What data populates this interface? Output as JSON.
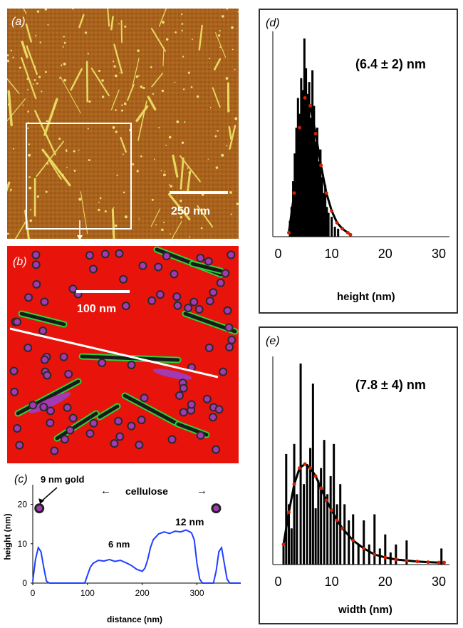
{
  "panels": {
    "a": {
      "letter_open": "(",
      "letter": "a",
      "letter_close": ")",
      "scale_bar_label": "250 nm",
      "colors": {
        "background": "#a8621c",
        "fibers": "#e8d860",
        "box": "#ffffff"
      }
    },
    "b": {
      "letter_open": "(",
      "letter": "b",
      "letter_close": ")",
      "scale_bar_label": "100 nm",
      "colors": {
        "background": "#e8140c",
        "particle": "#a23ab4",
        "fiber_edge": "#2ed23a",
        "line": "#ffffff"
      }
    },
    "c": {
      "letter_open": "(",
      "letter": "c",
      "letter_close": ")",
      "annotations": {
        "gold": "9 nm gold",
        "cellulose": "cellulose",
        "left_arrow": "←",
        "right_arrow": "→",
        "peak_12": "12 nm",
        "peak_6": "6 nm"
      },
      "chart_data": {
        "type": "line",
        "xlabel": "distance (nm)",
        "ylabel": "height (nm)",
        "xlim": [
          0,
          380
        ],
        "ylim": [
          0,
          25
        ],
        "x_ticks": [
          0,
          100,
          200,
          300
        ],
        "y_ticks": [
          0,
          10,
          20
        ],
        "x": [
          0,
          5,
          10,
          15,
          20,
          25,
          30,
          40,
          60,
          80,
          95,
          100,
          105,
          110,
          120,
          130,
          140,
          150,
          160,
          170,
          180,
          190,
          200,
          205,
          210,
          215,
          220,
          230,
          240,
          250,
          260,
          270,
          280,
          290,
          295,
          300,
          305,
          310,
          320,
          330,
          335,
          340,
          345,
          350,
          355,
          360,
          370,
          380
        ],
        "y": [
          0.5,
          6,
          9,
          8,
          4,
          0.5,
          0,
          0,
          0,
          0,
          0,
          2,
          4,
          5,
          5.8,
          5.6,
          6,
          5.5,
          5.8,
          5.2,
          4.5,
          3.5,
          3,
          3.8,
          6,
          9,
          11,
          12.5,
          13,
          12.6,
          13.2,
          13,
          13.5,
          12.8,
          11,
          5,
          1,
          0,
          0,
          0,
          3,
          8,
          9,
          5,
          1,
          0,
          0,
          0
        ],
        "series": [
          {
            "color": "#2040ff"
          }
        ]
      }
    },
    "d": {
      "letter_open": "(",
      "letter": "d",
      "letter_close": ")",
      "annotation": "(6.4 ± 2) nm",
      "chart_data": {
        "type": "bar",
        "xlabel": "height (nm)",
        "xlim": [
          -1,
          32
        ],
        "x_ticks": [
          0,
          10,
          20,
          30
        ],
        "bars": [
          {
            "x": 2.2,
            "h": 0.08
          },
          {
            "x": 2.5,
            "h": 0.15
          },
          {
            "x": 2.8,
            "h": 0.28
          },
          {
            "x": 3.1,
            "h": 0.42
          },
          {
            "x": 3.4,
            "h": 0.55
          },
          {
            "x": 3.7,
            "h": 0.7
          },
          {
            "x": 4.0,
            "h": 0.62
          },
          {
            "x": 4.3,
            "h": 0.8
          },
          {
            "x": 4.6,
            "h": 0.74
          },
          {
            "x": 4.9,
            "h": 1.0
          },
          {
            "x": 5.2,
            "h": 0.85
          },
          {
            "x": 5.5,
            "h": 0.72
          },
          {
            "x": 5.8,
            "h": 0.78
          },
          {
            "x": 6.1,
            "h": 0.6
          },
          {
            "x": 6.4,
            "h": 0.84
          },
          {
            "x": 6.7,
            "h": 0.66
          },
          {
            "x": 7.0,
            "h": 0.48
          },
          {
            "x": 7.3,
            "h": 0.55
          },
          {
            "x": 7.6,
            "h": 0.38
          },
          {
            "x": 7.9,
            "h": 0.44
          },
          {
            "x": 8.2,
            "h": 0.3
          },
          {
            "x": 8.5,
            "h": 0.22
          },
          {
            "x": 8.8,
            "h": 0.26
          },
          {
            "x": 9.1,
            "h": 0.15
          },
          {
            "x": 9.4,
            "h": 0.12
          },
          {
            "x": 10.0,
            "h": 0.1
          },
          {
            "x": 10.6,
            "h": 0.05
          },
          {
            "x": 11.2,
            "h": 0.04
          }
        ],
        "fit_x": [
          2,
          3,
          4,
          5,
          6,
          7,
          8,
          9,
          10,
          11,
          12,
          13,
          13.5
        ],
        "fit_y": [
          0.02,
          0.22,
          0.55,
          0.7,
          0.66,
          0.52,
          0.36,
          0.22,
          0.13,
          0.07,
          0.04,
          0.02,
          0.01
        ],
        "colors": {
          "bars": "#000000",
          "fit": "#cc2200"
        }
      }
    },
    "e": {
      "letter_open": "(",
      "letter": "e",
      "letter_close": ")",
      "annotation": "(7.8 ± 4) nm",
      "chart_data": {
        "type": "bar",
        "xlabel": "width (nm)",
        "xlim": [
          -1,
          32
        ],
        "x_ticks": [
          0,
          10,
          20,
          30
        ],
        "bars": [
          {
            "x": 1.0,
            "h": 0.1
          },
          {
            "x": 1.5,
            "h": 0.55
          },
          {
            "x": 2.0,
            "h": 0.3
          },
          {
            "x": 2.5,
            "h": 0.18
          },
          {
            "x": 3.0,
            "h": 0.6
          },
          {
            "x": 3.5,
            "h": 0.35
          },
          {
            "x": 4.2,
            "h": 1.0
          },
          {
            "x": 4.8,
            "h": 0.4
          },
          {
            "x": 5.4,
            "h": 0.5
          },
          {
            "x": 6.0,
            "h": 0.58
          },
          {
            "x": 6.5,
            "h": 0.9
          },
          {
            "x": 7.0,
            "h": 0.28
          },
          {
            "x": 7.5,
            "h": 0.42
          },
          {
            "x": 8.0,
            "h": 0.48
          },
          {
            "x": 8.6,
            "h": 0.62
          },
          {
            "x": 9.2,
            "h": 0.35
          },
          {
            "x": 9.8,
            "h": 0.44
          },
          {
            "x": 10.4,
            "h": 0.6
          },
          {
            "x": 11.0,
            "h": 0.3
          },
          {
            "x": 11.6,
            "h": 0.4
          },
          {
            "x": 12.4,
            "h": 0.3
          },
          {
            "x": 13.2,
            "h": 0.22
          },
          {
            "x": 14.0,
            "h": 0.25
          },
          {
            "x": 15.0,
            "h": 0.1
          },
          {
            "x": 16.0,
            "h": 0.22
          },
          {
            "x": 17.0,
            "h": 0.1
          },
          {
            "x": 18.0,
            "h": 0.25
          },
          {
            "x": 19.0,
            "h": 0.08
          },
          {
            "x": 20.0,
            "h": 0.15
          },
          {
            "x": 21.0,
            "h": 0.06
          },
          {
            "x": 22.0,
            "h": 0.1
          },
          {
            "x": 24.0,
            "h": 0.12
          },
          {
            "x": 30.5,
            "h": 0.08
          }
        ],
        "fit_x": [
          1,
          2,
          3,
          4,
          5,
          6,
          7,
          8,
          9,
          10,
          11,
          12,
          14,
          16,
          18,
          20,
          22,
          24,
          26,
          28,
          30,
          31
        ],
        "fit_y": [
          0.1,
          0.26,
          0.4,
          0.48,
          0.5,
          0.48,
          0.44,
          0.38,
          0.32,
          0.27,
          0.22,
          0.18,
          0.12,
          0.08,
          0.05,
          0.035,
          0.025,
          0.02,
          0.015,
          0.012,
          0.01,
          0.01
        ],
        "colors": {
          "bars": "#000000",
          "fit": "#cc2200"
        }
      }
    }
  }
}
